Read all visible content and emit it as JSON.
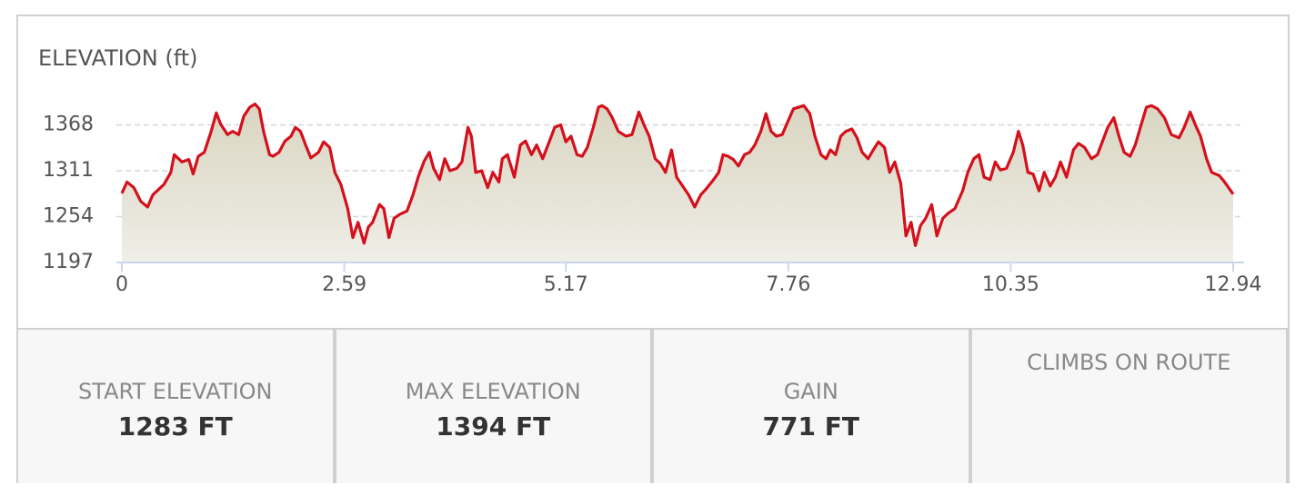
{
  "chart_data": {
    "type": "area",
    "title": "ELEVATION (ft)",
    "x": [
      0,
      0.06,
      0.14,
      0.22,
      0.3,
      0.36,
      0.49,
      0.57,
      0.61,
      0.7,
      0.78,
      0.83,
      0.89,
      0.96,
      1.04,
      1.1,
      1.15,
      1.23,
      1.29,
      1.36,
      1.42,
      1.49,
      1.55,
      1.6,
      1.65,
      1.72,
      1.76,
      1.83,
      1.9,
      1.97,
      2.02,
      2.08,
      2.14,
      2.2,
      2.29,
      2.35,
      2.42,
      2.48,
      2.55,
      2.63,
      2.69,
      2.75,
      2.82,
      2.87,
      2.92,
      3.0,
      3.05,
      3.11,
      3.17,
      3.24,
      3.32,
      3.39,
      3.45,
      3.52,
      3.58,
      3.63,
      3.7,
      3.76,
      3.82,
      3.9,
      3.96,
      4.03,
      4.07,
      4.12,
      4.19,
      4.26,
      4.32,
      4.39,
      4.43,
      4.49,
      4.57,
      4.64,
      4.7,
      4.77,
      4.83,
      4.9,
      4.98,
      5.04,
      5.11,
      5.17,
      5.23,
      5.3,
      5.36,
      5.42,
      5.49,
      5.55,
      5.59,
      5.65,
      5.71,
      5.78,
      5.87,
      5.94,
      6.02,
      6.08,
      6.14,
      6.21,
      6.27,
      6.33,
      6.4,
      6.46,
      6.53,
      6.6,
      6.67,
      6.74,
      6.8,
      6.89,
      6.95,
      7.0,
      7.06,
      7.12,
      7.18,
      7.25,
      7.31,
      7.37,
      7.44,
      7.5,
      7.56,
      7.62,
      7.69,
      7.75,
      7.82,
      7.88,
      7.94,
      8.01,
      8.07,
      8.14,
      8.2,
      8.25,
      8.31,
      8.37,
      8.43,
      8.5,
      8.56,
      8.62,
      8.69,
      8.75,
      8.81,
      8.88,
      8.94,
      9.0,
      9.07,
      9.13,
      9.19,
      9.24,
      9.3,
      9.36,
      9.43,
      9.49,
      9.56,
      9.62,
      9.7,
      9.79,
      9.85,
      9.92,
      9.98,
      10.04,
      10.11,
      10.17,
      10.23,
      10.3,
      10.38,
      10.44,
      10.49,
      10.55,
      10.61,
      10.68,
      10.74,
      10.81,
      10.87,
      10.93,
      11.0,
      11.08,
      11.14,
      11.21,
      11.29,
      11.36,
      11.42,
      11.48,
      11.55,
      11.61,
      11.67,
      11.74,
      11.8,
      11.86,
      11.93,
      11.99,
      12.06,
      12.14,
      12.22,
      12.31,
      12.37,
      12.44,
      12.5,
      12.56,
      12.63,
      12.69,
      12.78,
      12.84,
      12.94
    ],
    "values": [
      1283,
      1297,
      1290,
      1273,
      1266,
      1281,
      1294,
      1309,
      1331,
      1322,
      1325,
      1307,
      1329,
      1334,
      1360,
      1383,
      1369,
      1356,
      1360,
      1356,
      1379,
      1390,
      1394,
      1388,
      1360,
      1331,
      1329,
      1334,
      1348,
      1354,
      1365,
      1360,
      1343,
      1327,
      1334,
      1347,
      1340,
      1309,
      1294,
      1264,
      1228,
      1247,
      1221,
      1241,
      1247,
      1269,
      1264,
      1228,
      1252,
      1257,
      1261,
      1281,
      1303,
      1323,
      1334,
      1314,
      1300,
      1326,
      1311,
      1314,
      1322,
      1365,
      1354,
      1309,
      1311,
      1290,
      1309,
      1297,
      1326,
      1331,
      1303,
      1343,
      1348,
      1331,
      1343,
      1326,
      1348,
      1365,
      1368,
      1347,
      1354,
      1331,
      1329,
      1340,
      1365,
      1390,
      1392,
      1388,
      1377,
      1360,
      1354,
      1356,
      1384,
      1368,
      1354,
      1326,
      1320,
      1309,
      1337,
      1303,
      1292,
      1281,
      1266,
      1281,
      1288,
      1300,
      1309,
      1331,
      1329,
      1325,
      1317,
      1331,
      1334,
      1343,
      1360,
      1382,
      1360,
      1354,
      1356,
      1371,
      1388,
      1390,
      1392,
      1382,
      1354,
      1331,
      1326,
      1337,
      1331,
      1354,
      1360,
      1363,
      1352,
      1334,
      1326,
      1337,
      1347,
      1340,
      1309,
      1322,
      1295,
      1230,
      1247,
      1218,
      1243,
      1252,
      1269,
      1230,
      1252,
      1258,
      1264,
      1286,
      1309,
      1326,
      1331,
      1303,
      1300,
      1322,
      1312,
      1314,
      1334,
      1360,
      1343,
      1309,
      1307,
      1286,
      1309,
      1292,
      1303,
      1322,
      1303,
      1337,
      1345,
      1340,
      1326,
      1331,
      1348,
      1365,
      1377,
      1354,
      1334,
      1329,
      1343,
      1365,
      1390,
      1392,
      1388,
      1377,
      1356,
      1352,
      1365,
      1384,
      1368,
      1354,
      1326,
      1309,
      1305,
      1297,
      1282
    ],
    "color": "#d4101c",
    "xlim": [
      0,
      12.94
    ],
    "xticks": [
      0,
      2.59,
      5.17,
      7.76,
      10.35,
      12.94
    ],
    "ylim": [
      1197,
      1400
    ],
    "yticks": [
      1197,
      1254,
      1311,
      1368
    ],
    "grid": true
  },
  "stats": [
    {
      "label": "START ELEVATION",
      "value": "1283 FT"
    },
    {
      "label": "MAX ELEVATION",
      "value": "1394 FT"
    },
    {
      "label": "GAIN",
      "value": "771 FT"
    }
  ],
  "climbs": {
    "label": "CLIMBS ON ROUTE"
  }
}
